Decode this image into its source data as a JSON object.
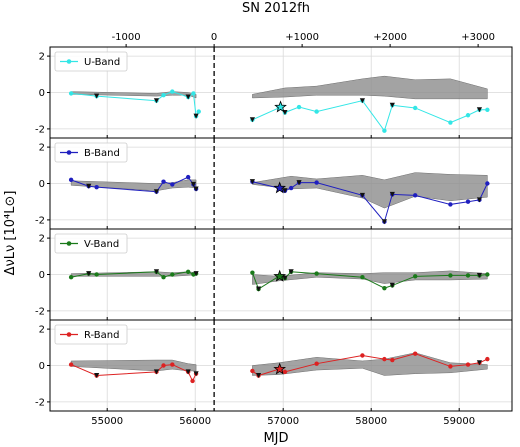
{
  "chart_data": {
    "type": "line",
    "title": "SN 2012fh",
    "xlabel": "MJD",
    "ylabel": "ΔνLν [10⁴L⊙]",
    "xlim": [
      54350,
      59600
    ],
    "ylim": [
      -2.5,
      2.5
    ],
    "x_ticks": [
      55000,
      56000,
      57000,
      58000,
      59000
    ],
    "y_ticks": [
      -2,
      0,
      2
    ],
    "top_axis": {
      "labels": [
        "-1000",
        "0",
        "+1000",
        "+2000",
        "+3000"
      ],
      "positions_mjd": [
        55215,
        56215,
        57215,
        58215,
        59215
      ]
    },
    "explosion_mjd": 56215,
    "grid": true,
    "legend_placement": "top-left",
    "panels": [
      {
        "name": "U-Band",
        "color": "#33e6e6",
        "points": [
          [
            54590,
            -0.05
          ],
          [
            54880,
            -0.2
          ],
          [
            55560,
            -0.45
          ],
          [
            55640,
            -0.15
          ],
          [
            55740,
            0.05
          ],
          [
            55920,
            -0.25
          ],
          [
            55980,
            -0.05
          ],
          [
            56010,
            -1.3
          ],
          [
            56040,
            -1.05
          ],
          [
            56650,
            -1.5
          ],
          [
            56950,
            -0.85
          ],
          [
            57020,
            -1.1
          ],
          [
            57180,
            -0.8
          ],
          [
            57380,
            -1.05
          ],
          [
            57900,
            -0.45
          ],
          [
            58150,
            -2.1
          ],
          [
            58240,
            -0.7
          ],
          [
            58500,
            -0.85
          ],
          [
            58900,
            -1.65
          ],
          [
            59100,
            -1.25
          ],
          [
            59230,
            -0.95
          ],
          [
            59320,
            -0.95
          ]
        ],
        "down_arrows": [
          [
            54880,
            -0.2
          ],
          [
            55560,
            -0.45
          ],
          [
            55920,
            -0.25
          ],
          [
            56010,
            -1.3
          ],
          [
            56650,
            -1.5
          ],
          [
            57020,
            -1.1
          ],
          [
            57900,
            -0.45
          ],
          [
            58240,
            -0.7
          ],
          [
            59230,
            -0.95
          ]
        ],
        "star": [
          56970,
          -0.8
        ],
        "band_upper": [
          [
            54590,
            0.05
          ],
          [
            55560,
            -0.05
          ],
          [
            55740,
            0.05
          ],
          [
            55920,
            0.0
          ],
          [
            56010,
            -0.1
          ]
        ],
        "band_lower": [
          [
            54590,
            -0.1
          ],
          [
            55560,
            -0.2
          ],
          [
            55740,
            -0.15
          ],
          [
            55920,
            -0.15
          ],
          [
            56010,
            -0.3
          ]
        ],
        "band2_upper": [
          [
            56650,
            -0.1
          ],
          [
            57020,
            0.25
          ],
          [
            57380,
            0.35
          ],
          [
            57900,
            0.75
          ],
          [
            58150,
            0.9
          ],
          [
            58500,
            0.7
          ],
          [
            58900,
            0.75
          ],
          [
            59320,
            0.2
          ]
        ],
        "band2_lower": [
          [
            56650,
            -0.3
          ],
          [
            57020,
            -0.25
          ],
          [
            57380,
            -0.15
          ],
          [
            57900,
            -0.15
          ],
          [
            58150,
            -0.2
          ],
          [
            58500,
            -0.35
          ],
          [
            58900,
            -0.35
          ],
          [
            59320,
            -0.35
          ]
        ]
      },
      {
        "name": "B-Band",
        "color": "#1f1fbf",
        "points": [
          [
            54590,
            0.2
          ],
          [
            54790,
            -0.15
          ],
          [
            54880,
            -0.2
          ],
          [
            55560,
            -0.45
          ],
          [
            55640,
            0.1
          ],
          [
            55740,
            -0.05
          ],
          [
            55920,
            0.35
          ],
          [
            55980,
            -0.05
          ],
          [
            56010,
            -0.3
          ],
          [
            56650,
            0.1
          ],
          [
            56950,
            -0.25
          ],
          [
            57020,
            -0.4
          ],
          [
            57090,
            -0.25
          ],
          [
            57180,
            0.05
          ],
          [
            57380,
            0.05
          ],
          [
            57900,
            -0.65
          ],
          [
            58150,
            -2.1
          ],
          [
            58240,
            -0.6
          ],
          [
            58500,
            -0.65
          ],
          [
            58900,
            -1.15
          ],
          [
            59100,
            -1.0
          ],
          [
            59230,
            -0.9
          ],
          [
            59320,
            0.0
          ]
        ],
        "down_arrows": [
          [
            54790,
            -0.15
          ],
          [
            55560,
            -0.45
          ],
          [
            55980,
            -0.05
          ],
          [
            56010,
            -0.3
          ],
          [
            56650,
            0.1
          ],
          [
            57020,
            -0.4
          ],
          [
            57180,
            0.05
          ],
          [
            57900,
            -0.65
          ],
          [
            58150,
            -2.1
          ],
          [
            58240,
            -0.6
          ],
          [
            59230,
            -0.9
          ]
        ],
        "star": [
          56960,
          -0.25
        ],
        "band_upper": [
          [
            54590,
            0.15
          ],
          [
            55560,
            0.0
          ],
          [
            55740,
            0.05
          ],
          [
            55920,
            0.2
          ],
          [
            56010,
            0.2
          ]
        ],
        "band_lower": [
          [
            54590,
            -0.1
          ],
          [
            55560,
            -0.4
          ],
          [
            55740,
            -0.25
          ],
          [
            55920,
            -0.2
          ],
          [
            56010,
            -0.25
          ]
        ],
        "band2_upper": [
          [
            56650,
            0.05
          ],
          [
            57090,
            0.4
          ],
          [
            57380,
            0.25
          ],
          [
            57900,
            0.45
          ],
          [
            58150,
            0.2
          ],
          [
            58500,
            0.6
          ],
          [
            58900,
            0.5
          ],
          [
            59320,
            0.45
          ]
        ],
        "band2_lower": [
          [
            56650,
            -0.05
          ],
          [
            57090,
            -0.3
          ],
          [
            57380,
            -0.25
          ],
          [
            57900,
            -0.8
          ],
          [
            58150,
            -1.35
          ],
          [
            58500,
            -0.7
          ],
          [
            58900,
            -0.95
          ],
          [
            59320,
            -0.75
          ]
        ]
      },
      {
        "name": "V-Band",
        "color": "#1a7a1a",
        "points": [
          [
            54590,
            -0.15
          ],
          [
            54790,
            0.05
          ],
          [
            54880,
            0.0
          ],
          [
            55560,
            0.15
          ],
          [
            55640,
            -0.15
          ],
          [
            55740,
            0.0
          ],
          [
            55920,
            0.15
          ],
          [
            55980,
            0.0
          ],
          [
            56010,
            0.05
          ],
          [
            56650,
            0.1
          ],
          [
            56720,
            -0.8
          ],
          [
            56950,
            -0.1
          ],
          [
            57020,
            -0.2
          ],
          [
            57090,
            0.15
          ],
          [
            57380,
            0.05
          ],
          [
            57900,
            -0.15
          ],
          [
            58150,
            -0.75
          ],
          [
            58240,
            -0.6
          ],
          [
            58500,
            -0.1
          ],
          [
            58900,
            -0.05
          ],
          [
            59100,
            -0.05
          ],
          [
            59230,
            -0.05
          ],
          [
            59320,
            0.0
          ]
        ],
        "down_arrows": [
          [
            54790,
            0.05
          ],
          [
            55560,
            0.15
          ],
          [
            56010,
            0.05
          ],
          [
            56720,
            -0.8
          ],
          [
            57020,
            -0.2
          ],
          [
            57090,
            0.15
          ],
          [
            58240,
            -0.6
          ],
          [
            59230,
            -0.05
          ]
        ],
        "star": [
          56960,
          -0.1
        ],
        "band_upper": [
          [
            54590,
            0.05
          ],
          [
            55560,
            0.15
          ],
          [
            55740,
            0.1
          ],
          [
            55920,
            0.15
          ],
          [
            56010,
            0.1
          ]
        ],
        "band_lower": [
          [
            54590,
            -0.1
          ],
          [
            55560,
            -0.1
          ],
          [
            55740,
            -0.1
          ],
          [
            55920,
            -0.05
          ],
          [
            56010,
            0.0
          ]
        ],
        "band2_upper": [
          [
            56650,
            0.0
          ],
          [
            56950,
            -0.1
          ],
          [
            57380,
            0.1
          ],
          [
            57900,
            0.05
          ],
          [
            58150,
            0.1
          ],
          [
            58500,
            0.1
          ],
          [
            58900,
            0.2
          ],
          [
            59320,
            0.05
          ]
        ],
        "band2_lower": [
          [
            56650,
            -0.55
          ],
          [
            56950,
            -0.35
          ],
          [
            57380,
            -0.15
          ],
          [
            57900,
            -0.25
          ],
          [
            58150,
            -0.5
          ],
          [
            58500,
            -0.3
          ],
          [
            58900,
            -0.3
          ],
          [
            59320,
            -0.25
          ]
        ]
      },
      {
        "name": "R-Band",
        "color": "#dd2222",
        "points": [
          [
            54590,
            0.05
          ],
          [
            54880,
            -0.55
          ],
          [
            55560,
            -0.35
          ],
          [
            55640,
            0.0
          ],
          [
            55740,
            0.05
          ],
          [
            55920,
            -0.35
          ],
          [
            55970,
            -0.85
          ],
          [
            56010,
            -0.45
          ],
          [
            56650,
            -0.3
          ],
          [
            56720,
            -0.55
          ],
          [
            56950,
            -0.2
          ],
          [
            57020,
            -0.35
          ],
          [
            57380,
            0.1
          ],
          [
            57900,
            0.55
          ],
          [
            58150,
            0.35
          ],
          [
            58240,
            0.3
          ],
          [
            58500,
            0.65
          ],
          [
            58900,
            -0.05
          ],
          [
            59100,
            0.05
          ],
          [
            59230,
            0.15
          ],
          [
            59320,
            0.35
          ]
        ],
        "down_arrows": [
          [
            54880,
            -0.55
          ],
          [
            55560,
            -0.35
          ],
          [
            55920,
            -0.35
          ],
          [
            56010,
            -0.45
          ],
          [
            56720,
            -0.55
          ],
          [
            59230,
            0.15
          ]
        ],
        "star": [
          56960,
          -0.2
        ],
        "band_upper": [
          [
            54590,
            0.25
          ],
          [
            55560,
            0.3
          ],
          [
            55740,
            0.3
          ],
          [
            55920,
            0.1
          ],
          [
            56010,
            0.05
          ]
        ],
        "band_lower": [
          [
            54590,
            -0.05
          ],
          [
            55560,
            -0.3
          ],
          [
            55740,
            -0.2
          ],
          [
            55920,
            -0.3
          ],
          [
            56010,
            -0.3
          ]
        ],
        "band2_upper": [
          [
            56650,
            0.0
          ],
          [
            56950,
            0.15
          ],
          [
            57380,
            0.45
          ],
          [
            57900,
            0.25
          ],
          [
            58150,
            0.35
          ],
          [
            58500,
            0.7
          ],
          [
            58900,
            0.15
          ],
          [
            59320,
            0.05
          ]
        ],
        "band2_lower": [
          [
            56650,
            -0.55
          ],
          [
            56950,
            -0.5
          ],
          [
            57380,
            -0.25
          ],
          [
            57900,
            -0.15
          ],
          [
            58150,
            -0.55
          ],
          [
            58500,
            -0.45
          ],
          [
            58900,
            -0.4
          ],
          [
            59320,
            -0.2
          ]
        ]
      }
    ]
  }
}
